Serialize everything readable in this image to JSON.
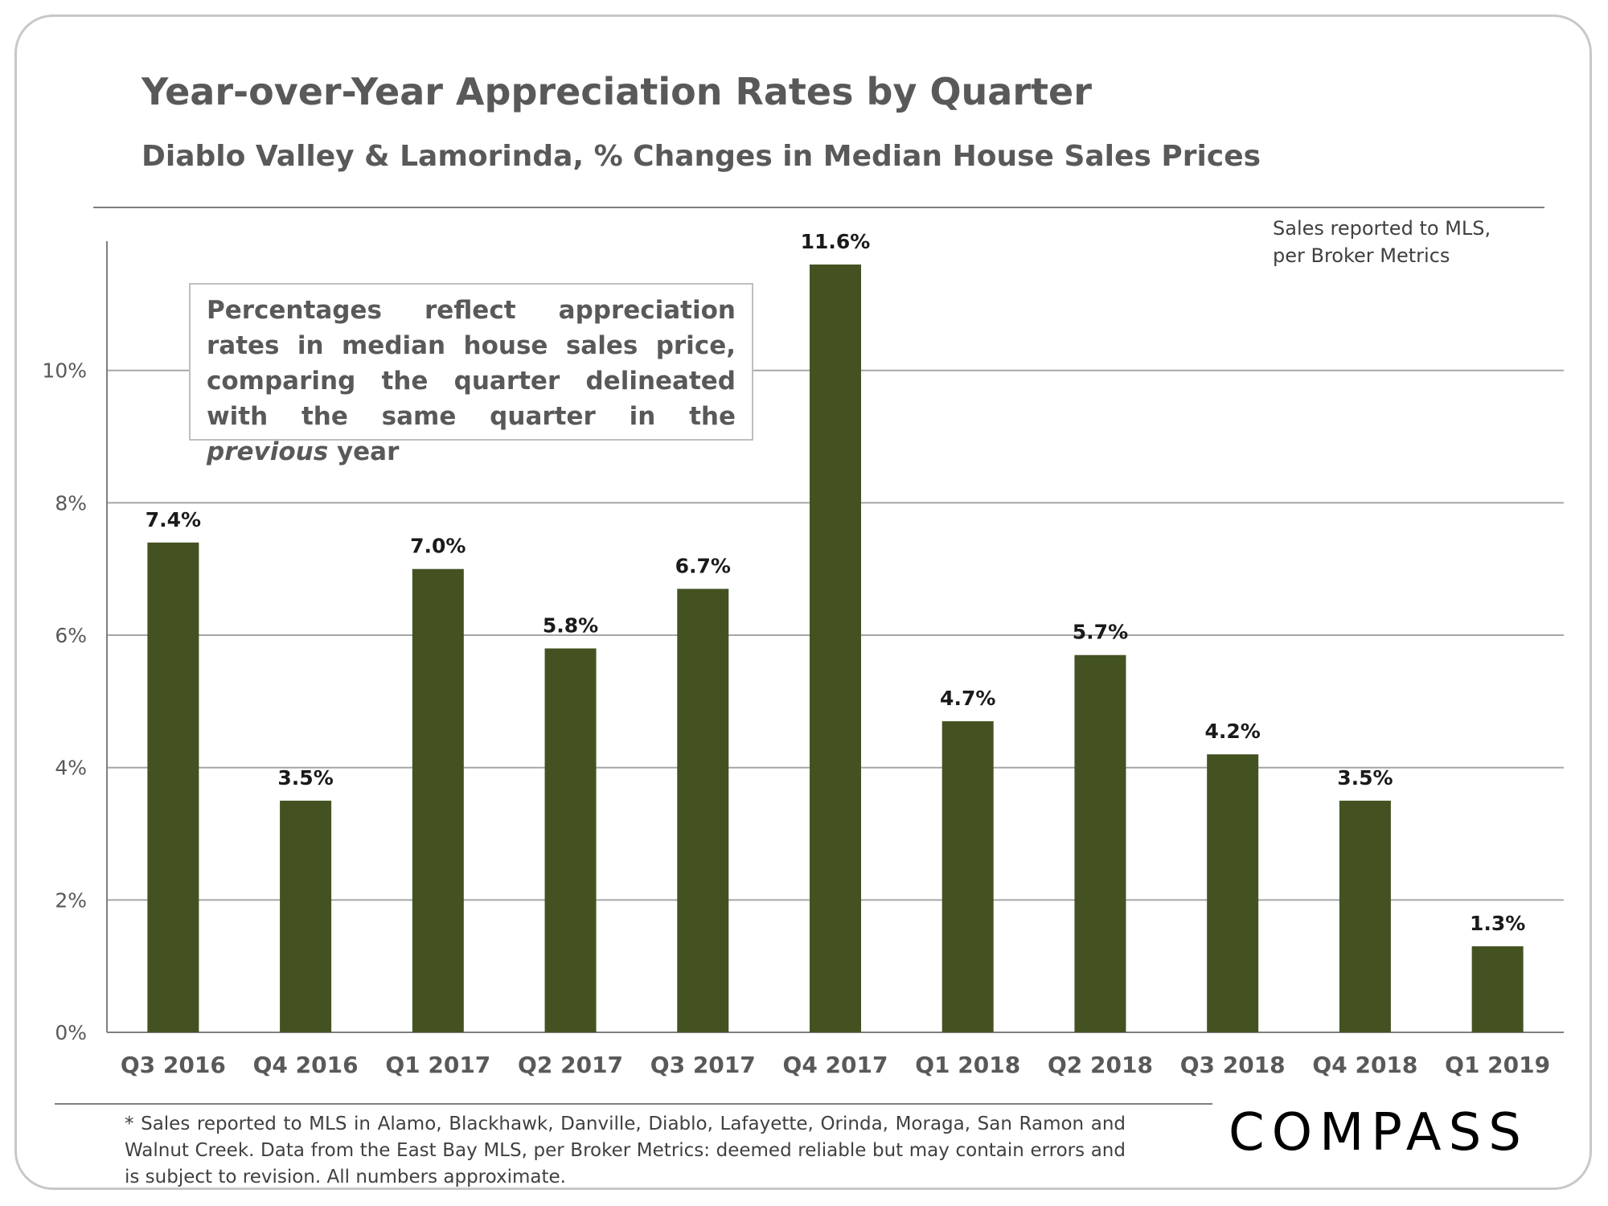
{
  "chart_data": {
    "type": "bar",
    "title": "Year-over-Year Appreciation Rates by Quarter",
    "subtitle": "Diablo Valley & Lamorinda, % Changes in Median House Sales Prices",
    "categories": [
      "Q3 2016",
      "Q4 2016",
      "Q1 2017",
      "Q2 2017",
      "Q3 2017",
      "Q4 2017",
      "Q1 2018",
      "Q2 2018",
      "Q3 2018",
      "Q4 2018",
      "Q1 2019"
    ],
    "values": [
      7.4,
      3.5,
      7.0,
      5.8,
      6.7,
      11.6,
      4.7,
      5.7,
      4.2,
      3.5,
      1.3
    ],
    "value_labels": [
      "7.4%",
      "3.5%",
      "7.0%",
      "5.8%",
      "6.7%",
      "11.6%",
      "4.7%",
      "5.7%",
      "4.2%",
      "3.5%",
      "1.3%"
    ],
    "yticks": [
      0,
      2,
      4,
      6,
      8,
      10
    ],
    "ytick_labels": [
      "0%",
      "2%",
      "4%",
      "6%",
      "8%",
      "10%"
    ],
    "ylim": [
      0,
      11.6
    ],
    "xlabel": "",
    "ylabel": "",
    "grid": true,
    "bar_color": "#445222"
  },
  "header": {
    "title": "Year-over-Year Appreciation Rates by Quarter",
    "subtitle": "Diablo Valley & Lamorinda, % Changes in Median House Sales Prices"
  },
  "source_note": {
    "line1": "Sales reported to MLS,",
    "line2": "per Broker Metrics"
  },
  "callout": {
    "text_before": "Percentages reflect appreciation rates in median house sales price, comparing the quarter delineated with the same quarter in the ",
    "emphasis": "previous",
    "text_after": " year"
  },
  "footnote": "* Sales reported to MLS in Alamo, Blackhawk, Danville, Diablo, Lafayette, Orinda, Moraga, San Ramon and Walnut Creek. Data from the East Bay MLS, per Broker Metrics:  deemed reliable but may contain errors and is subject to revision. All numbers approximate.",
  "brand": {
    "name": "COMPASS"
  },
  "colors": {
    "bar": "#445222",
    "text": "#595959",
    "grid": "#a6a6a6"
  }
}
